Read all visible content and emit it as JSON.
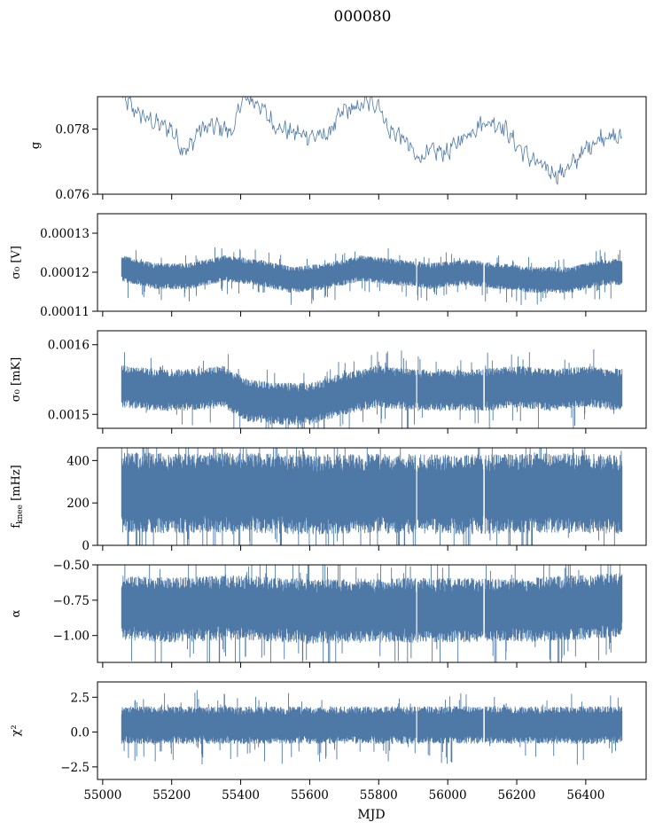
{
  "figure": {
    "suptitle": "000080",
    "xlabel": "MJD",
    "line_color": "#4e79a7"
  },
  "chart_data": [
    {
      "type": "line",
      "ylabel": "g",
      "xlim": [
        54985,
        56575
      ],
      "ylim": [
        0.076,
        0.079
      ],
      "yticks": [
        0.076,
        0.078
      ],
      "ytick_labels": [
        "0.076",
        "0.078"
      ],
      "xticks": [
        55000,
        55200,
        55400,
        55600,
        55800,
        56000,
        56200,
        56400
      ],
      "style": "trace",
      "series": [
        {
          "x": [
            55055,
            55100,
            55150,
            55200,
            55230,
            55250,
            55280,
            55330,
            55380,
            55400,
            55420,
            55450,
            55500,
            55550,
            55600,
            55650,
            55700,
            55730,
            55760,
            55800,
            55830,
            55850,
            55880,
            55910,
            55950,
            56000,
            56050,
            56100,
            56130,
            56160,
            56200,
            56240,
            56280,
            56320,
            56360,
            56400,
            56450,
            56505
          ],
          "y": [
            0.079,
            0.0785,
            0.0782,
            0.078,
            0.0774,
            0.0774,
            0.078,
            0.0781,
            0.0779,
            0.0789,
            0.0789,
            0.0788,
            0.0781,
            0.0779,
            0.0778,
            0.0778,
            0.0786,
            0.0786,
            0.0788,
            0.0788,
            0.0779,
            0.0779,
            0.0776,
            0.0771,
            0.0773,
            0.0773,
            0.0778,
            0.0782,
            0.0782,
            0.0781,
            0.0775,
            0.0771,
            0.0768,
            0.0766,
            0.0769,
            0.0774,
            0.0778,
            0.0777
          ]
        }
      ]
    },
    {
      "type": "line",
      "ylabel": "σ₀ [V]",
      "xlim": [
        54985,
        56575
      ],
      "ylim": [
        0.00011,
        0.000135
      ],
      "yticks": [
        0.00011,
        0.00012,
        0.00013
      ],
      "ytick_labels": [
        "0.00011",
        "0.00012",
        "0.00013"
      ],
      "xticks": [
        55000,
        55200,
        55400,
        55600,
        55800,
        56000,
        56200,
        56400
      ],
      "style": "band",
      "series": [
        {
          "x": [
            55055,
            55150,
            55250,
            55350,
            55450,
            55550,
            55650,
            55750,
            55850,
            55950,
            56050,
            56150,
            56250,
            56350,
            56450,
            56505
          ],
          "y": [
            0.000121,
            0.000119,
            0.000119,
            0.000121,
            0.00012,
            0.000118,
            0.000119,
            0.000121,
            0.00012,
            0.000119,
            0.00012,
            0.000119,
            0.000118,
            0.000118,
            0.00012,
            0.00012
          ]
        }
      ],
      "band_halfwidth": 2.5e-06,
      "gaps": [
        55910,
        56105
      ]
    },
    {
      "type": "line",
      "ylabel": "σ₀ [mK]",
      "xlim": [
        54985,
        56575
      ],
      "ylim": [
        0.00148,
        0.00162
      ],
      "yticks": [
        0.0015,
        0.0016
      ],
      "ytick_labels": [
        "0.0015",
        "0.0016"
      ],
      "xticks": [
        55000,
        55200,
        55400,
        55600,
        55800,
        56000,
        56200,
        56400
      ],
      "style": "band",
      "series": [
        {
          "x": [
            55055,
            55150,
            55250,
            55350,
            55420,
            55500,
            55600,
            55700,
            55800,
            55900,
            56000,
            56100,
            56200,
            56300,
            56400,
            56505
          ],
          "y": [
            0.00154,
            0.001535,
            0.001535,
            0.00154,
            0.00152,
            0.001515,
            0.001515,
            0.00153,
            0.00154,
            0.001535,
            0.001535,
            0.001535,
            0.00154,
            0.001535,
            0.00154,
            0.001535
          ]
        }
      ],
      "band_halfwidth": 2.25e-05,
      "gaps": [
        55910,
        56105
      ]
    },
    {
      "type": "line",
      "ylabel": "f_knee [mHz]",
      "xlim": [
        54985,
        56575
      ],
      "ylim": [
        0,
        460
      ],
      "yticks": [
        0,
        200,
        400
      ],
      "ytick_labels": [
        "0",
        "200",
        "400"
      ],
      "xticks": [
        55000,
        55200,
        55400,
        55600,
        55800,
        56000,
        56200,
        56400
      ],
      "style": "band",
      "series": [
        {
          "x": [
            55055,
            55200,
            55400,
            55600,
            55800,
            56000,
            56200,
            56400,
            56505
          ],
          "y": [
            250,
            245,
            250,
            240,
            245,
            240,
            245,
            245,
            240
          ]
        }
      ],
      "band_halfwidth": 140,
      "gaps": [
        55910,
        56105
      ]
    },
    {
      "type": "line",
      "ylabel": "α",
      "xlim": [
        54985,
        56575
      ],
      "ylim": [
        -1.19,
        -0.5
      ],
      "yticks": [
        -1.0,
        -0.75,
        -0.5
      ],
      "ytick_labels": [
        "−1.00",
        "−0.75",
        "−0.50"
      ],
      "xticks": [
        55000,
        55200,
        55400,
        55600,
        55800,
        56000,
        56200,
        56400
      ],
      "style": "band",
      "series": [
        {
          "x": [
            55055,
            55200,
            55400,
            55600,
            55800,
            56000,
            56200,
            56400,
            56505
          ],
          "y": [
            -0.8,
            -0.82,
            -0.8,
            -0.83,
            -0.82,
            -0.82,
            -0.82,
            -0.8,
            -0.78
          ]
        }
      ],
      "band_halfwidth": 0.17,
      "gaps": [
        55910,
        56105
      ]
    },
    {
      "type": "line",
      "ylabel": "χ²",
      "xlim": [
        54985,
        56575
      ],
      "ylim": [
        -3.4,
        3.6
      ],
      "yticks": [
        -2.5,
        0.0,
        2.5
      ],
      "ytick_labels": [
        "−2.5",
        "0.0",
        "2.5"
      ],
      "xticks": [
        55000,
        55200,
        55400,
        55600,
        55800,
        56000,
        56200,
        56400
      ],
      "xtick_labels": [
        "55000",
        "55200",
        "55400",
        "55600",
        "55800",
        "56000",
        "56200",
        "56400"
      ],
      "style": "band",
      "series": [
        {
          "x": [
            55055,
            55300,
            55600,
            55900,
            56200,
            56505
          ],
          "y": [
            0.5,
            0.5,
            0.5,
            0.5,
            0.5,
            0.5
          ]
        }
      ],
      "band_halfwidth": 1.0,
      "gaps": [
        55910,
        56105
      ]
    }
  ]
}
